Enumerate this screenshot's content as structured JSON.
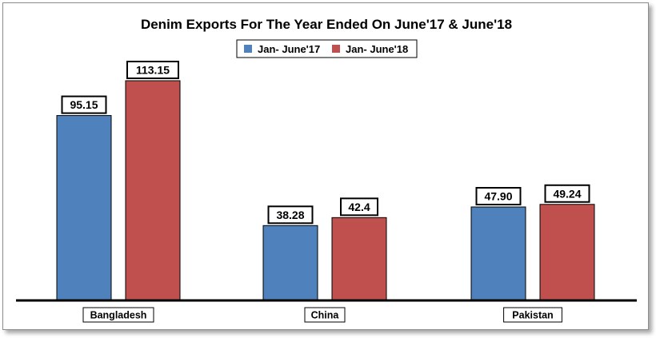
{
  "chart_data": {
    "type": "bar",
    "title": "Denim Exports For The Year Ended On June'17 & June'18",
    "categories": [
      "Bangladesh",
      "China",
      "Pakistan"
    ],
    "series": [
      {
        "name": "Jan- June'17",
        "values": [
          95.15,
          38.28,
          47.9
        ],
        "labels": [
          "95.15",
          "38.28",
          "47.90"
        ],
        "color": "#4f81bd"
      },
      {
        "name": "Jan- June'18",
        "values": [
          113.15,
          42.4,
          49.24
        ],
        "labels": [
          "113.15",
          "42.4",
          "49.24"
        ],
        "color": "#c0504d"
      }
    ],
    "ylim": [
      0,
      130
    ],
    "legend_position": "top-center",
    "grid": false
  }
}
